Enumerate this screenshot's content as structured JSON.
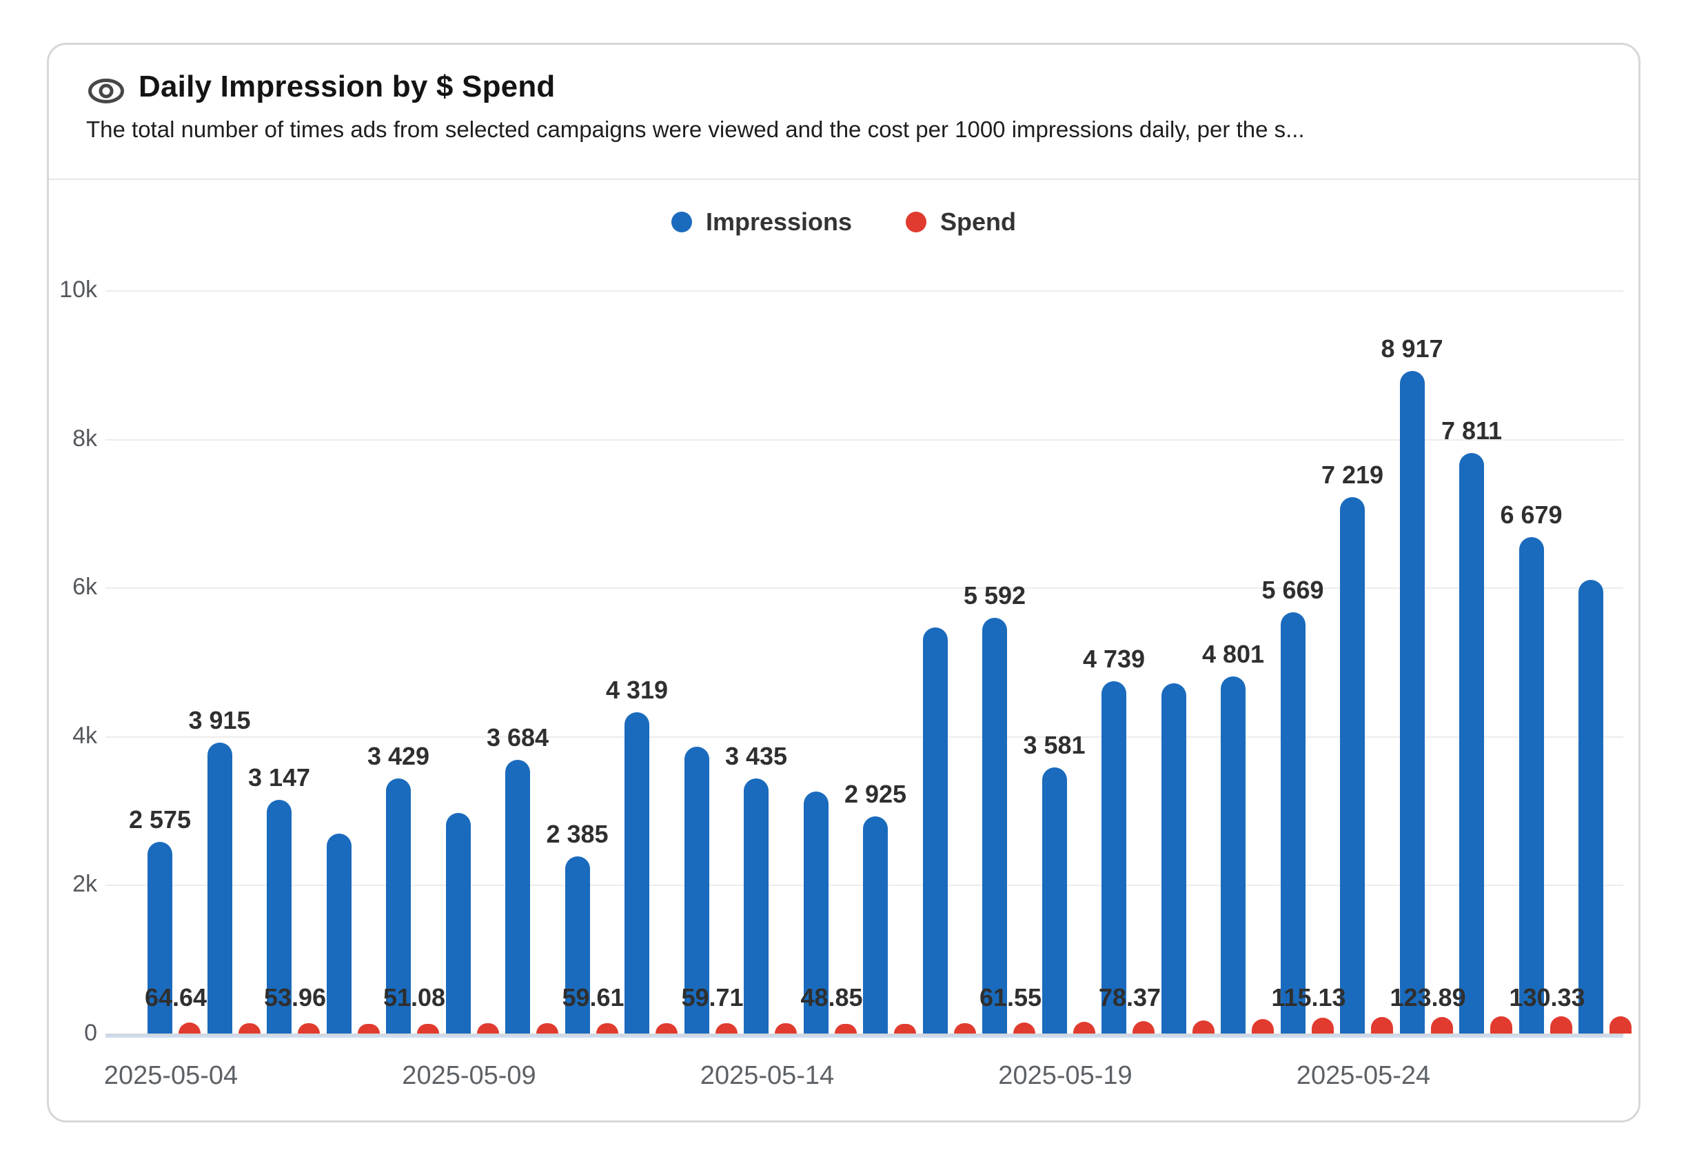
{
  "header": {
    "icon": "eye-icon",
    "title": "Daily Impression by $ Spend",
    "subtitle": "The total number of times ads from selected campaigns were viewed and the cost per 1000 impressions daily, per the s..."
  },
  "legend": {
    "items": [
      {
        "label": "Impressions",
        "color": "#1a6bbd"
      },
      {
        "label": "Spend",
        "color": "#e13b2f"
      }
    ]
  },
  "colors": {
    "impressions_bar": "#1a6bbd",
    "spend_dot": "#e13b2f",
    "gridline": "#ececec",
    "axis_line": "#d2d7de",
    "card_border": "#d7d7d7"
  },
  "chart_data": {
    "type": "bar",
    "title": "Daily Impression by $ Spend",
    "grid": true,
    "legend_position": "top",
    "x_axis": {
      "num_points": 25,
      "tick_labels": [
        "2025-05-04",
        "2025-05-09",
        "2025-05-14",
        "2025-05-19",
        "2025-05-24"
      ],
      "tick_point_indexes": [
        0,
        5,
        10,
        15,
        20
      ]
    },
    "y_axis": {
      "range": [
        0,
        10000
      ],
      "tick_values": [
        0,
        2000,
        4000,
        6000,
        8000,
        10000
      ],
      "tick_labels": [
        "0",
        "2k",
        "4k",
        "6k",
        "8k",
        "10k"
      ]
    },
    "series": [
      {
        "name": "Impressions",
        "type": "bar",
        "color": "#1a6bbd",
        "values": [
          2575,
          3915,
          3147,
          2690,
          3429,
          2965,
          3684,
          2385,
          4319,
          3860,
          3435,
          3255,
          2925,
          5460,
          5592,
          3581,
          4739,
          4710,
          4801,
          5669,
          7219,
          8917,
          7811,
          6679,
          6100
        ],
        "data_labels": [
          "2 575",
          "3 915",
          "3 147",
          null,
          "3 429",
          null,
          "3 684",
          "2 385",
          "4 319",
          null,
          "3 435",
          null,
          "2 925",
          null,
          "5 592",
          "3 581",
          "4 739",
          null,
          "4 801",
          "5 669",
          "7 219",
          "8 917",
          "7 811",
          "6 679",
          null
        ]
      },
      {
        "name": "Spend",
        "type": "bar",
        "color": "#e13b2f",
        "values": [
          64.64,
          59,
          53.96,
          52,
          51.08,
          54,
          57,
          59.61,
          60,
          59.71,
          54,
          48.85,
          52,
          58,
          61.55,
          68,
          78.37,
          88,
          100,
          115.13,
          120,
          123.89,
          127,
          130.33,
          131
        ],
        "data_labels": [
          "64.64",
          null,
          "53.96",
          null,
          "51.08",
          null,
          null,
          "59.61",
          null,
          "59.71",
          null,
          "48.85",
          null,
          null,
          "61.55",
          null,
          "78.37",
          null,
          null,
          "115.13",
          null,
          "123.89",
          null,
          "130.33",
          null
        ]
      }
    ]
  }
}
